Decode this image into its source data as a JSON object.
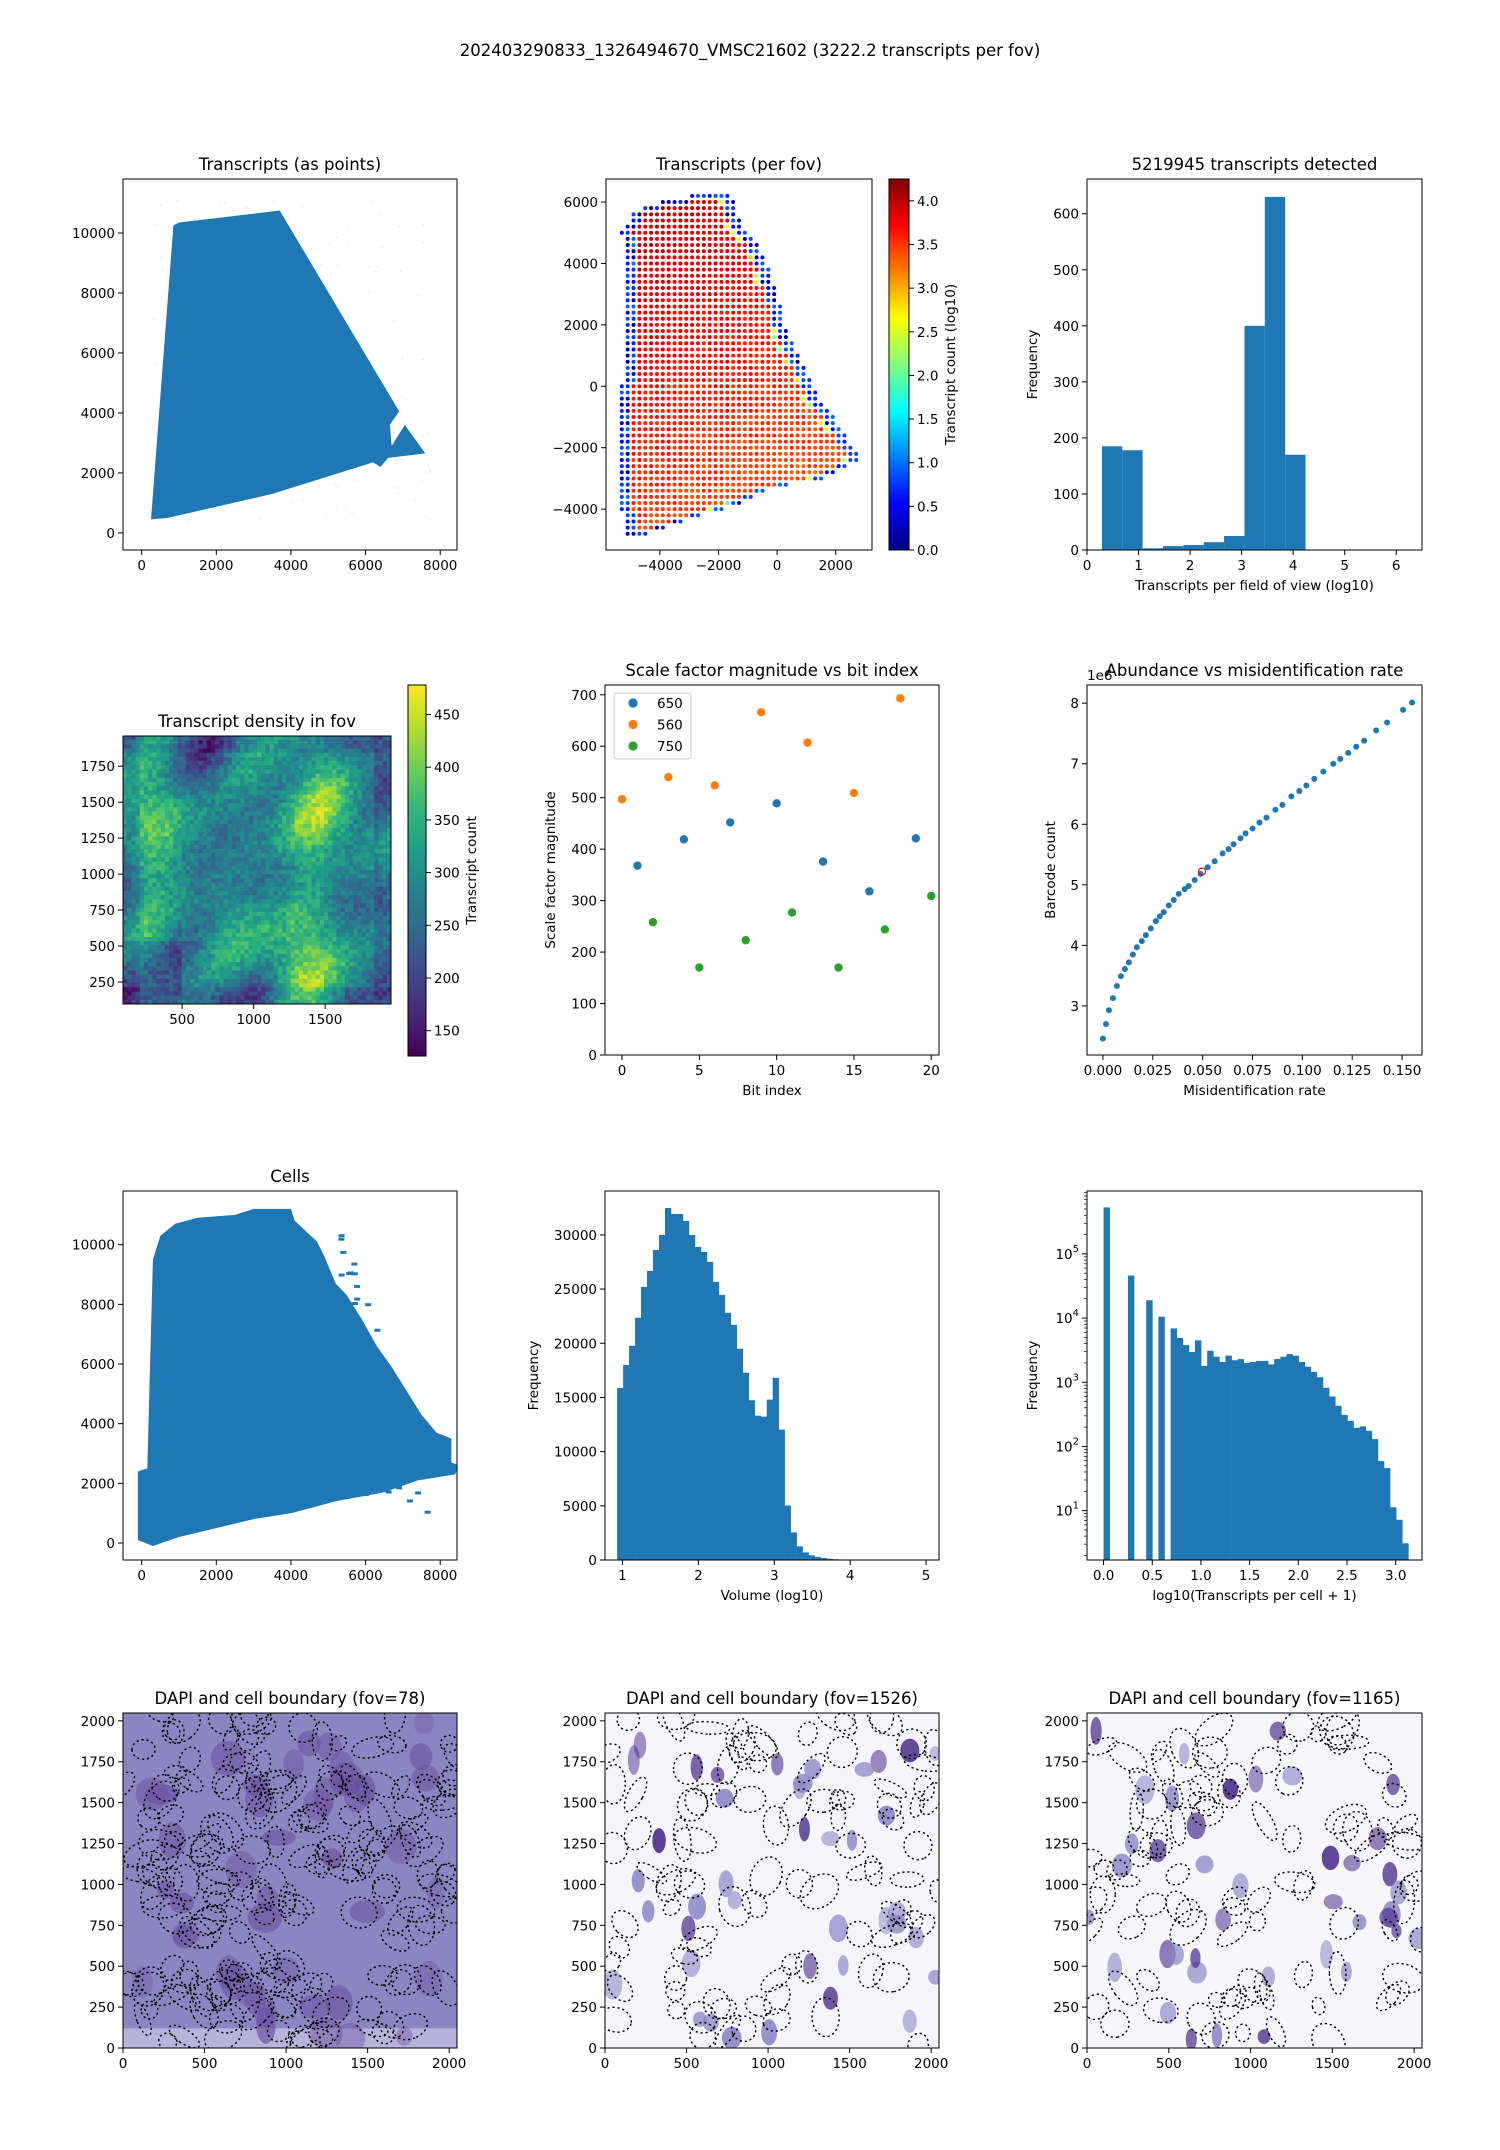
{
  "suptitle": "202403290833_1326494670_VMSC21602 (3222.2 transcripts per fov)",
  "chart_data": [
    {
      "id": "transcripts-points",
      "type": "scatter",
      "title": "Transcripts (as points)",
      "xlabel": "",
      "ylabel": "",
      "color": "#1f77b4",
      "xlim": [
        -500,
        8450
      ],
      "ylim": [
        -570,
        11800
      ],
      "xticks": [
        0,
        2000,
        4000,
        6000,
        8000
      ],
      "xtick_labels": [
        "0",
        "2000",
        "4000",
        "6000",
        "8000"
      ],
      "yticks": [
        0,
        2000,
        4000,
        6000,
        8000,
        10000
      ],
      "ytick_labels": [
        "0",
        "2000",
        "4000",
        "6000",
        "8000",
        "10000"
      ]
    },
    {
      "id": "transcripts-per-fov",
      "type": "scatter",
      "title": "Transcripts (per fov)",
      "xlim": [
        -5840,
        3240
      ],
      "ylim": [
        -5330,
        6750
      ],
      "grid_spacing": 200,
      "xticks": [
        -4000,
        -2000,
        0,
        2000
      ],
      "xtick_labels": [
        "−4000",
        "−2000",
        "0",
        "2000"
      ],
      "yticks": [
        -4000,
        -2000,
        0,
        2000,
        4000,
        6000
      ],
      "ytick_labels": [
        "−4000",
        "−2000",
        "0",
        "2000",
        "4000",
        "6000"
      ],
      "colorbar": {
        "label": "Transcript count (log10)",
        "cmap": "jet",
        "range": [
          0,
          4.25
        ],
        "ticks": [
          0,
          0.5,
          1,
          1.5,
          2,
          2.5,
          3,
          3.5,
          4
        ],
        "tick_labels": [
          "0.0",
          "0.5",
          "1.0",
          "1.5",
          "2.0",
          "2.5",
          "3.0",
          "3.5",
          "4.0"
        ]
      }
    },
    {
      "id": "transcripts-hist",
      "type": "bar",
      "title": "5219945 transcripts detected",
      "xlabel": "Transcripts per field of view (log10)",
      "ylabel": "Frequency",
      "color": "#1f77b4",
      "bin_edges": [
        0.29,
        0.685,
        1.08,
        1.475,
        1.87,
        2.265,
        2.66,
        3.055,
        3.45,
        3.845,
        4.24
      ],
      "values": [
        185,
        178,
        3,
        7,
        9,
        14,
        25,
        400,
        630,
        170
      ],
      "xlim": [
        0,
        6.5
      ],
      "ylim": [
        0,
        662
      ],
      "xticks": [
        0,
        1,
        2,
        3,
        4,
        5,
        6
      ],
      "xtick_labels": [
        "0",
        "1",
        "2",
        "3",
        "4",
        "5",
        "6"
      ],
      "yticks": [
        0,
        100,
        200,
        300,
        400,
        500,
        600
      ],
      "ytick_labels": [
        "0",
        "100",
        "200",
        "300",
        "400",
        "500",
        "600"
      ]
    },
    {
      "id": "transcript-density",
      "type": "heatmap",
      "title": "Transcript density in fov",
      "xlim": [
        87,
        1960
      ],
      "ylim": [
        97,
        1960
      ],
      "xticks": [
        500,
        1000,
        1500
      ],
      "xtick_labels": [
        "500",
        "1000",
        "1500"
      ],
      "yticks": [
        250,
        500,
        750,
        1000,
        1250,
        1500,
        1750
      ],
      "ytick_labels": [
        "250",
        "500",
        "750",
        "1000",
        "1250",
        "1500",
        "1750"
      ],
      "colorbar": {
        "label": "Transcript count",
        "cmap": "viridis",
        "range": [
          126,
          478
        ],
        "ticks": [
          150,
          200,
          250,
          300,
          350,
          400,
          450
        ],
        "tick_labels": [
          "150",
          "200",
          "250",
          "300",
          "350",
          "400",
          "450"
        ]
      }
    },
    {
      "id": "scale-factor",
      "type": "scatter",
      "title": "Scale factor magnitude vs bit index",
      "xlabel": "Bit index",
      "ylabel": "Scale factor magnitude",
      "xlim": [
        -1.1,
        20.5
      ],
      "ylim": [
        0,
        719
      ],
      "legend_position": "upper-left",
      "xticks": [
        0,
        5,
        10,
        15,
        20
      ],
      "xtick_labels": [
        "0",
        "5",
        "10",
        "15",
        "20"
      ],
      "yticks": [
        0,
        100,
        200,
        300,
        400,
        500,
        600,
        700
      ],
      "ytick_labels": [
        "0",
        "100",
        "200",
        "300",
        "400",
        "500",
        "600",
        "700"
      ],
      "series": [
        {
          "name": "650",
          "color": "#1f77b4",
          "x": [
            1,
            4,
            7,
            10,
            13,
            16,
            19
          ],
          "y": [
            368,
            419,
            452,
            489,
            376,
            318,
            421
          ]
        },
        {
          "name": "560",
          "color": "#ff7f0e",
          "x": [
            0,
            3,
            6,
            9,
            12,
            15,
            18
          ],
          "y": [
            497,
            540,
            524,
            666,
            607,
            509,
            693
          ]
        },
        {
          "name": "750",
          "color": "#2ca02c",
          "x": [
            2,
            5,
            8,
            11,
            14,
            17,
            20
          ],
          "y": [
            258,
            170,
            223,
            277,
            170,
            244,
            309
          ]
        }
      ]
    },
    {
      "id": "abundance",
      "type": "scatter",
      "title": "Abundance vs misidentification rate",
      "xlabel": "Misidentification rate",
      "ylabel": "Barcode count",
      "offset_text": "1e6",
      "color": "#1f77b4",
      "highlight_color": "#ff0000",
      "xlim": [
        -0.008,
        0.16
      ],
      "ylim": [
        2.19,
        8.3
      ],
      "xticks": [
        0,
        0.025,
        0.05,
        0.075,
        0.1,
        0.125,
        0.15
      ],
      "xtick_labels": [
        "0.000",
        "0.025",
        "0.050",
        "0.075",
        "0.100",
        "0.125",
        "0.150"
      ],
      "yticks": [
        3,
        4,
        5,
        6,
        7,
        8
      ],
      "ytick_labels": [
        "3",
        "4",
        "5",
        "6",
        "7",
        "8"
      ],
      "x": [
        0,
        0.0015,
        0.003,
        0.005,
        0.007,
        0.009,
        0.011,
        0.013,
        0.015,
        0.017,
        0.0195,
        0.0215,
        0.024,
        0.0265,
        0.0285,
        0.0305,
        0.033,
        0.0355,
        0.038,
        0.041,
        0.043,
        0.046,
        0.049,
        0.0525,
        0.056,
        0.06,
        0.063,
        0.0655,
        0.069,
        0.0715,
        0.075,
        0.0785,
        0.082,
        0.0865,
        0.09,
        0.0945,
        0.0985,
        0.102,
        0.106,
        0.1105,
        0.1155,
        0.119,
        0.123,
        0.127,
        0.131,
        0.137,
        0.1425,
        0.1505,
        0.155
      ],
      "y": [
        2.46,
        2.7,
        2.93,
        3.13,
        3.33,
        3.49,
        3.61,
        3.72,
        3.85,
        3.97,
        4.07,
        4.17,
        4.28,
        4.4,
        4.48,
        4.55,
        4.66,
        4.75,
        4.85,
        4.93,
        4.98,
        5.08,
        5.18,
        5.29,
        5.39,
        5.52,
        5.59,
        5.67,
        5.77,
        5.85,
        5.93,
        6.03,
        6.11,
        6.24,
        6.32,
        6.46,
        6.55,
        6.64,
        6.75,
        6.87,
        7.0,
        7.08,
        7.18,
        7.28,
        7.38,
        7.55,
        7.68,
        7.89,
        8.01
      ],
      "highlight": {
        "x": 0.0497,
        "y": 5.22
      }
    },
    {
      "id": "cells",
      "type": "scatter",
      "title": "Cells",
      "color": "#1f77b4",
      "xlim": [
        -500,
        8450
      ],
      "ylim": [
        -570,
        11800
      ],
      "xticks": [
        0,
        2000,
        4000,
        6000,
        8000
      ],
      "xtick_labels": [
        "0",
        "2000",
        "4000",
        "6000",
        "8000"
      ],
      "yticks": [
        0,
        2000,
        4000,
        6000,
        8000,
        10000
      ],
      "ytick_labels": [
        "0",
        "2000",
        "4000",
        "6000",
        "8000",
        "10000"
      ]
    },
    {
      "id": "volume-hist",
      "type": "bar",
      "title": "",
      "xlabel": "Volume (log10)",
      "ylabel": "Frequency",
      "color": "#1f77b4",
      "bin_start": 0.93,
      "bin_width": 0.0788,
      "values": [
        15870,
        17990,
        19770,
        22350,
        25200,
        26680,
        28610,
        29990,
        32480,
        31930,
        31930,
        31280,
        29990,
        28890,
        28430,
        27510,
        25665,
        24470,
        22810,
        21700,
        19490,
        17280,
        14740,
        13320,
        13230,
        14800,
        16820,
        12030,
        5030,
        2550,
        1260,
        700,
        430,
        280,
        180,
        110,
        70,
        45,
        25,
        15,
        10,
        6,
        4,
        3,
        2
      ],
      "xlim": [
        0.77,
        5.17
      ],
      "ylim": [
        0,
        34050
      ],
      "xticks": [
        1,
        2,
        3,
        4,
        5
      ],
      "xtick_labels": [
        "1",
        "2",
        "3",
        "4",
        "5"
      ],
      "yticks": [
        0,
        5000,
        10000,
        15000,
        20000,
        25000,
        30000
      ],
      "ytick_labels": [
        "0",
        "5000",
        "10000",
        "15000",
        "20000",
        "25000",
        "30000"
      ]
    },
    {
      "id": "transcripts-per-cell-hist",
      "type": "bar",
      "title": "",
      "yscale": "log",
      "xlabel": "log10(Transcripts per cell + 1)",
      "ylabel": "Frequency",
      "color": "#1f77b4",
      "bin_start": 0,
      "bin_width": 0.0626,
      "values": [
        530000,
        0,
        0,
        0,
        46000,
        0,
        0,
        19000,
        0,
        10500,
        0,
        6900,
        4900,
        3800,
        2960,
        4500,
        1800,
        3100,
        2500,
        2070,
        2600,
        2200,
        2300,
        2000,
        2070,
        2150,
        2150,
        1900,
        2300,
        2500,
        2750,
        2600,
        2070,
        1750,
        1450,
        1200,
        820,
        600,
        430,
        310,
        250,
        195,
        205,
        175,
        130,
        59,
        46,
        11.3,
        7.2,
        3.1
      ],
      "xlim": [
        -0.17,
        3.27
      ],
      "ylim": [
        1.7,
        955000
      ],
      "xticks": [
        0,
        0.5,
        1,
        1.5,
        2,
        2.5,
        3
      ],
      "xtick_labels": [
        "0.0",
        "0.5",
        "1.0",
        "1.5",
        "2.0",
        "2.5",
        "3.0"
      ],
      "yticks": [
        10,
        100,
        1000,
        10000,
        100000
      ],
      "ytick_labels": [
        "10^1",
        "10^2",
        "10^3",
        "10^4",
        "10^5"
      ]
    },
    {
      "id": "dapi-fov-78",
      "type": "image",
      "title": "DAPI and cell boundary (fov=78)",
      "xlim": [
        0,
        2048
      ],
      "ylim": [
        0,
        2048
      ],
      "xticks": [
        0,
        500,
        1000,
        1500,
        2000
      ],
      "xtick_labels": [
        "0",
        "500",
        "1000",
        "1500",
        "2000"
      ],
      "yticks": [
        0,
        250,
        500,
        750,
        1000,
        1250,
        1500,
        1750,
        2000
      ],
      "ytick_labels": [
        "0",
        "250",
        "500",
        "750",
        "1000",
        "1250",
        "1500",
        "1750",
        "2000"
      ]
    },
    {
      "id": "dapi-fov-1526",
      "type": "image",
      "title": "DAPI and cell boundary (fov=1526)",
      "xlim": [
        0,
        2048
      ],
      "ylim": [
        0,
        2048
      ],
      "xticks": [
        0,
        500,
        1000,
        1500,
        2000
      ],
      "xtick_labels": [
        "0",
        "500",
        "1000",
        "1500",
        "2000"
      ],
      "yticks": [
        0,
        250,
        500,
        750,
        1000,
        1250,
        1500,
        1750,
        2000
      ],
      "ytick_labels": [
        "0",
        "250",
        "500",
        "750",
        "1000",
        "1250",
        "1500",
        "1750",
        "2000"
      ]
    },
    {
      "id": "dapi-fov-1165",
      "type": "image",
      "title": "DAPI and cell boundary (fov=1165)",
      "xlim": [
        0,
        2048
      ],
      "ylim": [
        0,
        2048
      ],
      "xticks": [
        0,
        500,
        1000,
        1500,
        2000
      ],
      "xtick_labels": [
        "0",
        "500",
        "1000",
        "1500",
        "2000"
      ],
      "yticks": [
        0,
        250,
        500,
        750,
        1000,
        1250,
        1500,
        1750,
        2000
      ],
      "ytick_labels": [
        "0",
        "250",
        "500",
        "750",
        "1000",
        "1250",
        "1500",
        "1750",
        "2000"
      ]
    }
  ]
}
